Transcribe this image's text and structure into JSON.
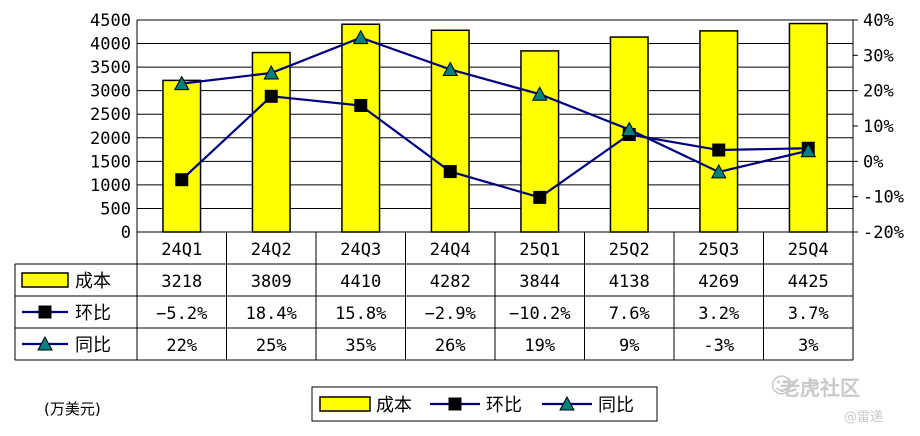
{
  "chart_data": {
    "type": "bar",
    "categories": [
      "24Q1",
      "24Q2",
      "24Q3",
      "24Q4",
      "25Q1",
      "25Q2",
      "25Q3",
      "25Q4"
    ],
    "series": [
      {
        "name": "成本",
        "kind": "bar",
        "axis": "left",
        "values": [
          3218,
          3809,
          4410,
          4282,
          3844,
          4138,
          4269,
          4425
        ],
        "labels": [
          "3218",
          "3809",
          "4410",
          "4282",
          "3844",
          "4138",
          "4269",
          "4425"
        ]
      },
      {
        "name": "环比",
        "kind": "line",
        "axis": "right",
        "marker": "square",
        "values": [
          -5.2,
          18.4,
          15.8,
          -2.9,
          -10.2,
          7.6,
          3.2,
          3.7
        ],
        "labels": [
          "−5.2%",
          "18.4%",
          "15.8%",
          "−2.9%",
          "−10.2%",
          "7.6%",
          "3.2%",
          "3.7%"
        ]
      },
      {
        "name": "同比",
        "kind": "line",
        "axis": "right",
        "marker": "triangle",
        "values": [
          22,
          25,
          35,
          26,
          19,
          9,
          -3,
          3
        ],
        "labels": [
          "22%",
          "25%",
          "35%",
          "26%",
          "19%",
          "9%",
          "-3%",
          "3%"
        ]
      }
    ],
    "left_axis": {
      "ylim": [
        0,
        4500
      ],
      "ticks": [
        "0",
        "500",
        "1000",
        "1500",
        "2000",
        "2500",
        "3000",
        "3500",
        "4000",
        "4500"
      ]
    },
    "right_axis": {
      "ylim": [
        -20,
        40
      ],
      "ticks": [
        "-20%",
        "-10%",
        "0%",
        "10%",
        "20%",
        "30%",
        "40%"
      ]
    },
    "legend_position": "bottom",
    "data_table": true,
    "unit_note": "(万美元)",
    "colors": {
      "bar_fill": "#ffff00",
      "bar_stroke": "#000000",
      "line": "#000080",
      "square_marker": "#000000",
      "triangle_marker": "#008080"
    }
  },
  "watermark": {
    "main": "老虎社区",
    "sub": "@雷递"
  }
}
